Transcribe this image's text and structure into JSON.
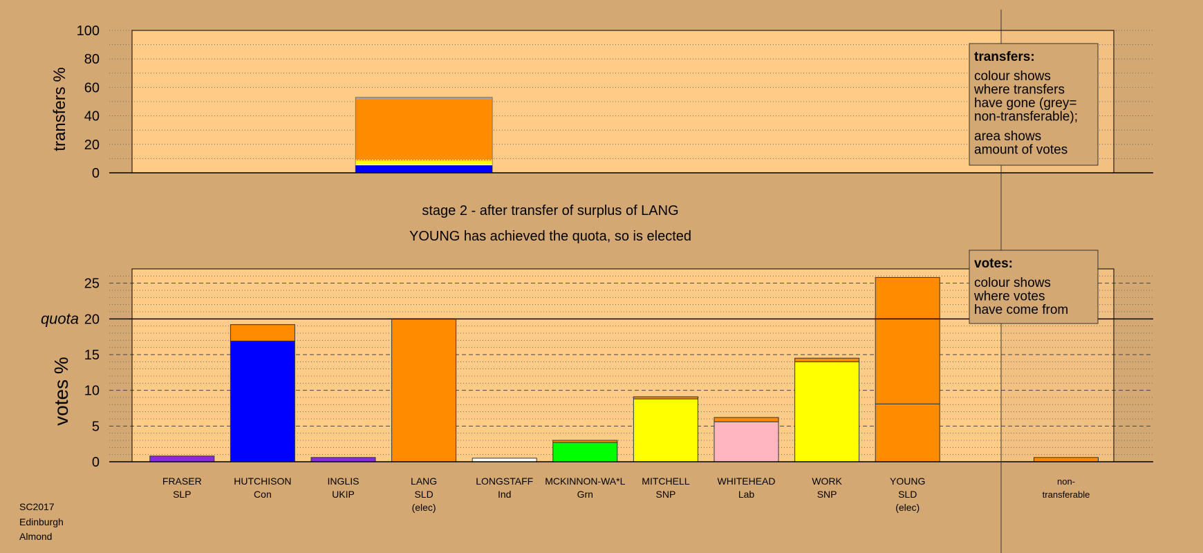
{
  "chart_data": [
    {
      "type": "bar",
      "ylabel": "transfers %",
      "ylim": [
        0,
        100
      ],
      "yticks": [
        0,
        20,
        40,
        60,
        80,
        100
      ],
      "grid": true,
      "transfer_bar": {
        "source": "LANG",
        "segments": [
          {
            "color": "#0000ff",
            "from": 0,
            "to": 5.5
          },
          {
            "color": "#ffff00",
            "from": 5.5,
            "to": 8.5
          },
          {
            "color": "#ff8c00",
            "from": 8.5,
            "to": 51.5
          },
          {
            "color": "#a0a0a0",
            "from": 51.5,
            "to": 53
          }
        ]
      },
      "legend": {
        "title": "transfers:",
        "lines": [
          "colour shows",
          "where transfers",
          "have gone (grey=",
          "non-transferable);",
          "area shows",
          "amount of votes"
        ]
      }
    },
    {
      "type": "bar",
      "ylabel": "votes %",
      "ylim": [
        0,
        27
      ],
      "yticks": [
        0,
        5,
        10,
        15,
        20,
        25
      ],
      "quota": 20,
      "quota_label": "quota",
      "grid": true,
      "categories": [
        {
          "name": "FRASER",
          "party": "SLP",
          "note": "",
          "segments": [
            {
              "color": "#8a2be2",
              "value": 0.8
            }
          ]
        },
        {
          "name": "HUTCHISON",
          "party": "Con",
          "note": "",
          "segments": [
            {
              "color": "#0000ff",
              "value": 16.9
            },
            {
              "color": "#ff8c00",
              "value": 2.3
            }
          ]
        },
        {
          "name": "INGLIS",
          "party": "UKIP",
          "note": "",
          "segments": [
            {
              "color": "#8a2be2",
              "value": 0.6
            }
          ]
        },
        {
          "name": "LANG",
          "party": "SLD",
          "note": "(elec)",
          "segments": [
            {
              "color": "#ff8c00",
              "value": 20
            }
          ]
        },
        {
          "name": "LONGSTAFF",
          "party": "Ind",
          "note": "",
          "segments": [
            {
              "color": "#ffffff",
              "value": 0.5
            }
          ]
        },
        {
          "name": "MCKINNON-WA*L",
          "party": "Grn",
          "note": "",
          "segments": [
            {
              "color": "#00ff00",
              "value": 2.7
            },
            {
              "color": "#ff8c00",
              "value": 0.3
            }
          ]
        },
        {
          "name": "MITCHELL",
          "party": "SNP",
          "note": "",
          "segments": [
            {
              "color": "#ffff00",
              "value": 8.8
            },
            {
              "color": "#ff8c00",
              "value": 0.3
            }
          ]
        },
        {
          "name": "WHITEHEAD",
          "party": "Lab",
          "note": "",
          "segments": [
            {
              "color": "#ffb6c1",
              "value": 5.6
            },
            {
              "color": "#ff8c00",
              "value": 0.6
            }
          ]
        },
        {
          "name": "WORK",
          "party": "SNP",
          "note": "",
          "segments": [
            {
              "color": "#ffff00",
              "value": 14
            },
            {
              "color": "#ff8c00",
              "value": 0.5
            }
          ]
        },
        {
          "name": "YOUNG",
          "party": "SLD",
          "note": "(elec)",
          "segments": [
            {
              "color": "#ff8c00",
              "value": 8.1
            },
            {
              "color": "#ff8c00",
              "value": 17.7
            }
          ]
        }
      ],
      "nontransferable": {
        "name": "non-",
        "party": "transferable",
        "segments": [
          {
            "color": "#ff8c00",
            "value": 0.6
          }
        ]
      },
      "legend": {
        "title": "votes:",
        "lines": [
          "colour shows",
          "where votes",
          "have come from"
        ]
      }
    }
  ],
  "stage_text": "stage 2 - after transfer of surplus of LANG",
  "status_text": "YOUNG has achieved the quota, so is elected",
  "footer": [
    "SC2017",
    "Edinburgh",
    "Almond"
  ],
  "colors": {
    "background": "#d4a873",
    "panel": "#ffcc88",
    "grid": "#555555"
  }
}
